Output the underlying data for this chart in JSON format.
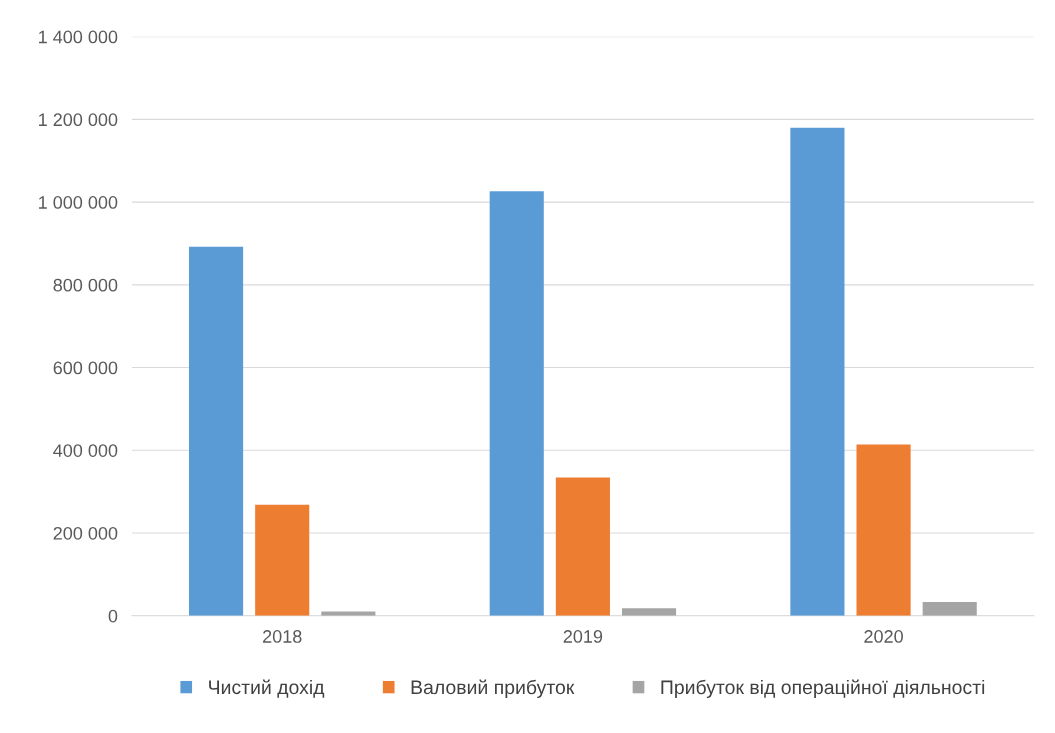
{
  "chart_data": {
    "type": "bar",
    "categories": [
      "2018",
      "2019",
      "2020"
    ],
    "series": [
      {
        "name": "Чистий дохід",
        "color": "#5b9bd5",
        "values": [
          892000,
          1026000,
          1180000
        ]
      },
      {
        "name": "Валовий прибуток",
        "color": "#ed7d31",
        "values": [
          268000,
          334000,
          414000
        ]
      },
      {
        "name": "Прибуток від операційної діяльності",
        "color": "#a5a5a5",
        "values": [
          10000,
          18000,
          33000
        ]
      }
    ],
    "ylim": [
      0,
      1400000
    ],
    "yticks": [
      {
        "value": 0,
        "label": "0"
      },
      {
        "value": 200000,
        "label": "200 000"
      },
      {
        "value": 400000,
        "label": "400 000"
      },
      {
        "value": 600000,
        "label": "600 000"
      },
      {
        "value": 800000,
        "label": "800 000"
      },
      {
        "value": 1000000,
        "label": "1 000 000"
      },
      {
        "value": 1200000,
        "label": "1 200 000"
      },
      {
        "value": 1400000,
        "label": "1 400 000"
      }
    ],
    "grid": "y",
    "legend": "bottom"
  }
}
